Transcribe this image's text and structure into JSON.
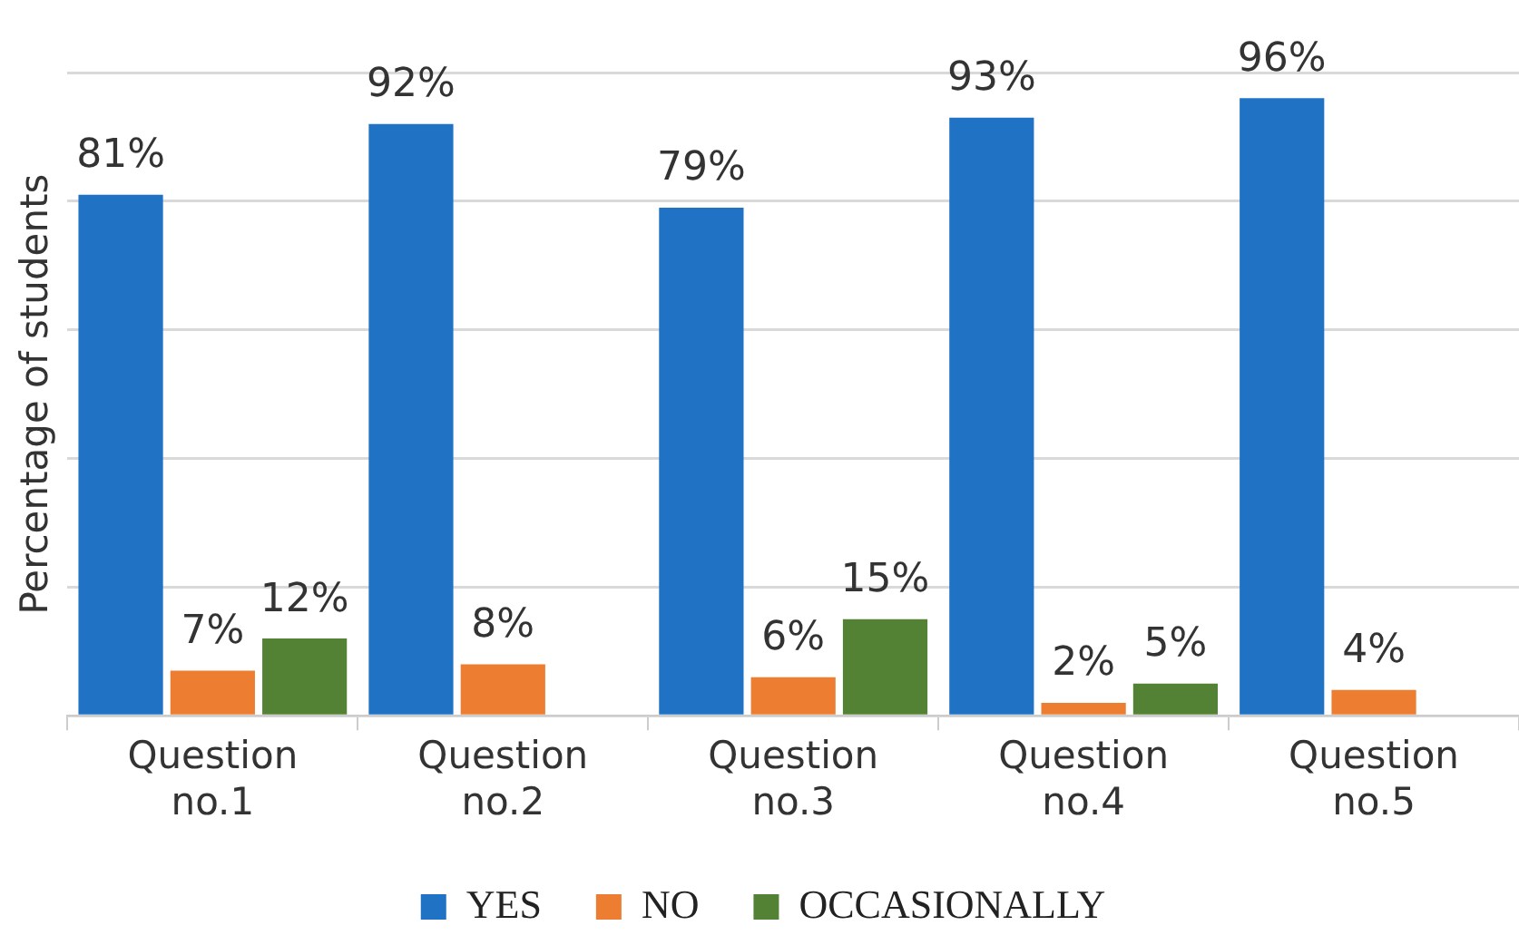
{
  "chart_data": {
    "type": "bar",
    "ylabel": "Percentage of students",
    "categories": [
      "Question no.1",
      "Question no.2",
      "Question no.3",
      "Question no.4",
      "Question no.5"
    ],
    "series": [
      {
        "name": "YES",
        "color": "#1f72c4",
        "values": [
          81,
          92,
          79,
          93,
          96
        ],
        "value_labels": [
          "81%",
          "92%",
          "79%",
          "93%",
          "96%"
        ]
      },
      {
        "name": "NO",
        "color": "#ed7d31",
        "values": [
          7,
          8,
          6,
          2,
          4
        ],
        "value_labels": [
          "7%",
          "8%",
          "6%",
          "2%",
          "4%"
        ]
      },
      {
        "name": "OCCASIONALLY",
        "color": "#548235",
        "values": [
          12,
          null,
          15,
          5,
          null
        ],
        "value_labels": [
          "12%",
          null,
          "15%",
          "5%",
          null
        ]
      }
    ],
    "ylim": [
      0,
      100
    ],
    "yticks": [
      {
        "value": 0,
        "label": null
      },
      {
        "value": 20,
        "label": null
      },
      {
        "value": 40,
        "label": null
      },
      {
        "value": 60,
        "label": null
      },
      {
        "value": 80,
        "label": null
      },
      {
        "value": 100,
        "label": null
      }
    ],
    "tick_labels": "x",
    "grid": "y",
    "legend": "bottom"
  }
}
